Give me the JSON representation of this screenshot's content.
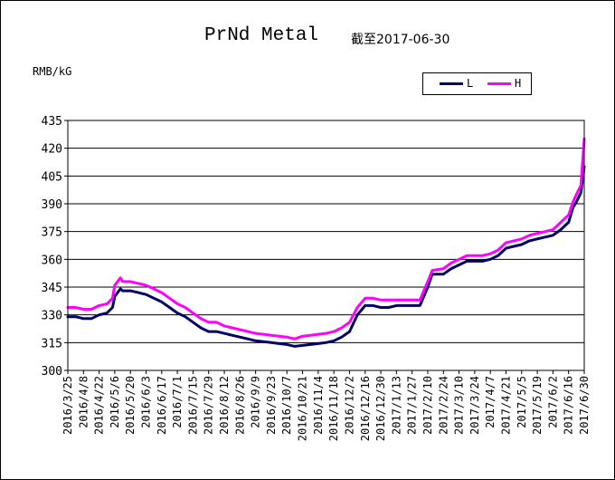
{
  "title": "PrNd Metal",
  "date_note": "截至2017-06-30",
  "unit_label": "RMB/kG",
  "legend": [
    {
      "name": "L",
      "color": "#000066"
    },
    {
      "name": "H",
      "color": "#ff00ff"
    }
  ],
  "chart_data": {
    "type": "line",
    "title": "PrNd Metal",
    "xlabel": "",
    "ylabel": "RMB/kG",
    "ylim": [
      300,
      435
    ],
    "yticks": [
      300,
      315,
      330,
      345,
      360,
      375,
      390,
      405,
      420,
      435
    ],
    "grid": "horizontal",
    "legend_position": "top-right",
    "x_tick_labels": [
      "2016/3/25",
      "2016/4/8",
      "2016/4/22",
      "2016/5/6",
      "2016/5/20",
      "2016/6/3",
      "2016/6/17",
      "2016/7/1",
      "2016/7/15",
      "2016/7/29",
      "2016/8/12",
      "2016/8/26",
      "2016/9/9",
      "2016/9/23",
      "2016/10/7",
      "2016/10/21",
      "2016/11/4",
      "2016/11/18",
      "2016/12/2",
      "2016/12/16",
      "2016/12/30",
      "2017/1/13",
      "2017/1/27",
      "2017/2/10",
      "2017/2/24",
      "2017/3/10",
      "2017/3/24",
      "2017/4/7",
      "2017/4/21",
      "2017/5/5",
      "2017/5/19",
      "2017/6/2",
      "2017/6/16",
      "2017/6/30"
    ],
    "series": [
      {
        "name": "L",
        "color": "#000066",
        "x": [
          "2016/3/25",
          "2016/4/1",
          "2016/4/8",
          "2016/4/15",
          "2016/4/22",
          "2016/4/29",
          "2016/5/4",
          "2016/5/6",
          "2016/5/11",
          "2016/5/13",
          "2016/5/20",
          "2016/5/27",
          "2016/6/3",
          "2016/6/10",
          "2016/6/17",
          "2016/6/24",
          "2016/7/1",
          "2016/7/8",
          "2016/7/15",
          "2016/7/22",
          "2016/7/29",
          "2016/8/5",
          "2016/8/12",
          "2016/8/19",
          "2016/8/26",
          "2016/9/2",
          "2016/9/9",
          "2016/9/16",
          "2016/9/23",
          "2016/9/30",
          "2016/10/7",
          "2016/10/14",
          "2016/10/21",
          "2016/10/28",
          "2016/11/4",
          "2016/11/11",
          "2016/11/18",
          "2016/11/25",
          "2016/12/2",
          "2016/12/9",
          "2016/12/16",
          "2016/12/23",
          "2016/12/30",
          "2017/1/6",
          "2017/1/13",
          "2017/1/20",
          "2017/1/27",
          "2017/2/3",
          "2017/2/10",
          "2017/2/14",
          "2017/2/24",
          "2017/3/3",
          "2017/3/10",
          "2017/3/17",
          "2017/3/24",
          "2017/3/31",
          "2017/4/7",
          "2017/4/14",
          "2017/4/21",
          "2017/4/28",
          "2017/5/5",
          "2017/5/12",
          "2017/5/19",
          "2017/5/26",
          "2017/6/2",
          "2017/6/9",
          "2017/6/16",
          "2017/6/20",
          "2017/6/23",
          "2017/6/27",
          "2017/6/30"
        ],
        "values": [
          329,
          329,
          328,
          328,
          330,
          331,
          334,
          340,
          344,
          343,
          343,
          342,
          341,
          339,
          337,
          334,
          331,
          329,
          326,
          323,
          321,
          321,
          320,
          319,
          318,
          317,
          316,
          315.5,
          315,
          314.5,
          314,
          313,
          313.5,
          314,
          314.5,
          315,
          316,
          318,
          321,
          330,
          335,
          335,
          334,
          334,
          335,
          335,
          335,
          335,
          345,
          352,
          352,
          355,
          357,
          359,
          359,
          359,
          360,
          362,
          366,
          367,
          368,
          370,
          371,
          372,
          373,
          376,
          380,
          388,
          391,
          396,
          410
        ]
      },
      {
        "name": "H",
        "color": "#ff00ff",
        "x": [
          "2016/3/25",
          "2016/4/1",
          "2016/4/8",
          "2016/4/15",
          "2016/4/22",
          "2016/4/29",
          "2016/5/4",
          "2016/5/6",
          "2016/5/11",
          "2016/5/13",
          "2016/5/20",
          "2016/5/27",
          "2016/6/3",
          "2016/6/10",
          "2016/6/17",
          "2016/6/24",
          "2016/7/1",
          "2016/7/8",
          "2016/7/15",
          "2016/7/22",
          "2016/7/29",
          "2016/8/5",
          "2016/8/12",
          "2016/8/19",
          "2016/8/26",
          "2016/9/2",
          "2016/9/9",
          "2016/9/16",
          "2016/9/23",
          "2016/9/30",
          "2016/10/7",
          "2016/10/14",
          "2016/10/21",
          "2016/10/28",
          "2016/11/4",
          "2016/11/11",
          "2016/11/18",
          "2016/11/25",
          "2016/12/2",
          "2016/12/9",
          "2016/12/16",
          "2016/12/23",
          "2016/12/30",
          "2017/1/6",
          "2017/1/13",
          "2017/1/20",
          "2017/1/27",
          "2017/2/3",
          "2017/2/10",
          "2017/2/14",
          "2017/2/24",
          "2017/3/3",
          "2017/3/10",
          "2017/3/17",
          "2017/3/24",
          "2017/3/31",
          "2017/4/7",
          "2017/4/14",
          "2017/4/21",
          "2017/4/28",
          "2017/5/5",
          "2017/5/12",
          "2017/5/19",
          "2017/5/26",
          "2017/6/2",
          "2017/6/9",
          "2017/6/16",
          "2017/6/20",
          "2017/6/23",
          "2017/6/27",
          "2017/6/30"
        ],
        "values": [
          334,
          334,
          333,
          333,
          335,
          336,
          339,
          346,
          350,
          348,
          348,
          347,
          346,
          344,
          342,
          339,
          336,
          334,
          331,
          328,
          326,
          326,
          324,
          323,
          322,
          321,
          320,
          319.5,
          319,
          318.5,
          318,
          317,
          318.5,
          319,
          319.5,
          320,
          321,
          323,
          326,
          334,
          339,
          339,
          338,
          338,
          338,
          338,
          338,
          338,
          348,
          354,
          355,
          358,
          360,
          362,
          362,
          362,
          363,
          365,
          369,
          370,
          371,
          373,
          374,
          375,
          376,
          380,
          384,
          391,
          395,
          400,
          425
        ]
      }
    ]
  }
}
